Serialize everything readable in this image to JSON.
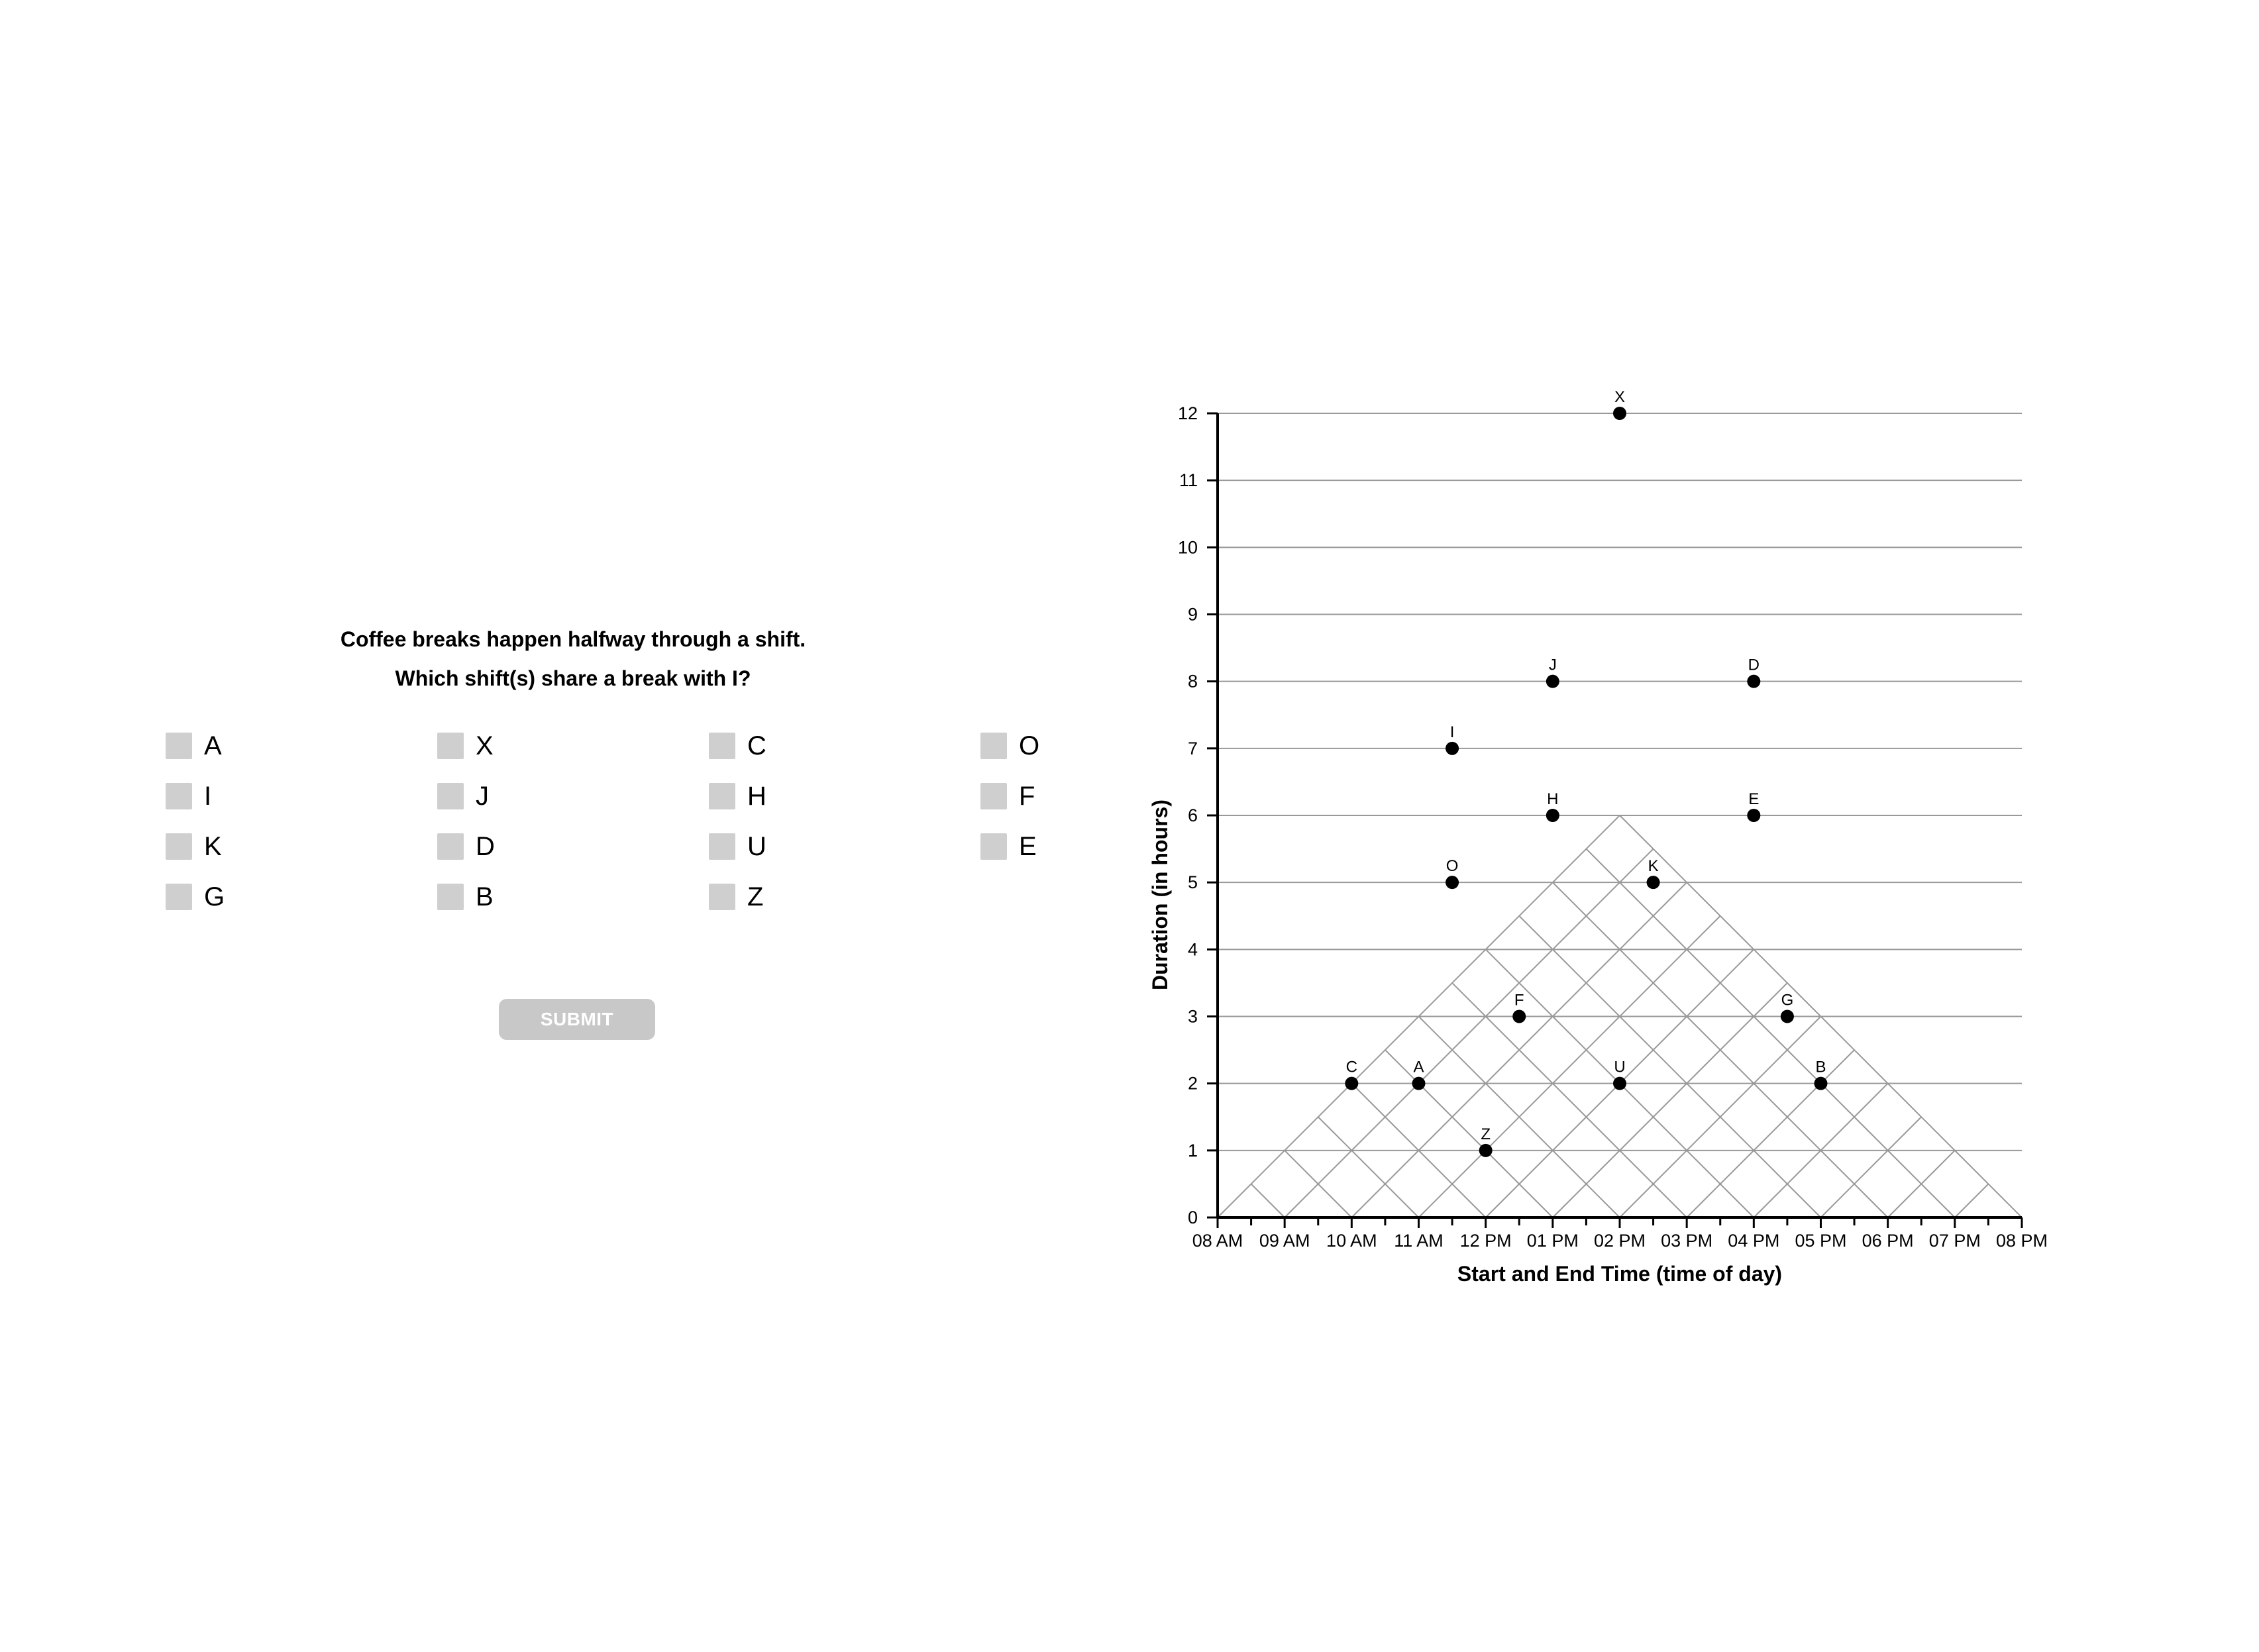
{
  "question": {
    "line1": "Coffee breaks happen halfway through a shift.",
    "line2": "Which shift(s) share a break with I?"
  },
  "options": [
    "A",
    "X",
    "C",
    "O",
    "I",
    "J",
    "H",
    "F",
    "K",
    "D",
    "U",
    "E",
    "G",
    "B",
    "Z"
  ],
  "submit_label": "SUBMIT",
  "colors": {
    "checkbox": "#cfcfcf",
    "submit": "#c8c8c8",
    "grid": "#999999",
    "point": "#000000"
  },
  "chart_data": {
    "type": "scatter",
    "title": "",
    "xlabel": "Start and End Time (time of day)",
    "ylabel": "Duration (in hours)",
    "xlim": [
      8,
      20
    ],
    "ylim": [
      0,
      12
    ],
    "x_tick_labels": [
      "08 AM",
      "09 AM",
      "10 AM",
      "11 AM",
      "12 PM",
      "01 PM",
      "02 PM",
      "03 PM",
      "04 PM",
      "05 PM",
      "06 PM",
      "07 PM",
      "08 PM"
    ],
    "y_ticks": [
      0,
      1,
      2,
      3,
      4,
      5,
      6,
      7,
      8,
      9,
      10,
      11,
      12
    ],
    "grid": "triangular",
    "points": [
      {
        "label": "X",
        "x": 14,
        "y": 12
      },
      {
        "label": "J",
        "x": 13,
        "y": 8
      },
      {
        "label": "D",
        "x": 16,
        "y": 8
      },
      {
        "label": "I",
        "x": 11.5,
        "y": 7
      },
      {
        "label": "H",
        "x": 13,
        "y": 6
      },
      {
        "label": "E",
        "x": 16,
        "y": 6
      },
      {
        "label": "O",
        "x": 11.5,
        "y": 5
      },
      {
        "label": "K",
        "x": 14.5,
        "y": 5
      },
      {
        "label": "F",
        "x": 12.5,
        "y": 3
      },
      {
        "label": "G",
        "x": 16.5,
        "y": 3
      },
      {
        "label": "C",
        "x": 10,
        "y": 2
      },
      {
        "label": "A",
        "x": 11,
        "y": 2
      },
      {
        "label": "U",
        "x": 14,
        "y": 2
      },
      {
        "label": "B",
        "x": 17,
        "y": 2
      },
      {
        "label": "Z",
        "x": 12,
        "y": 1
      }
    ]
  }
}
